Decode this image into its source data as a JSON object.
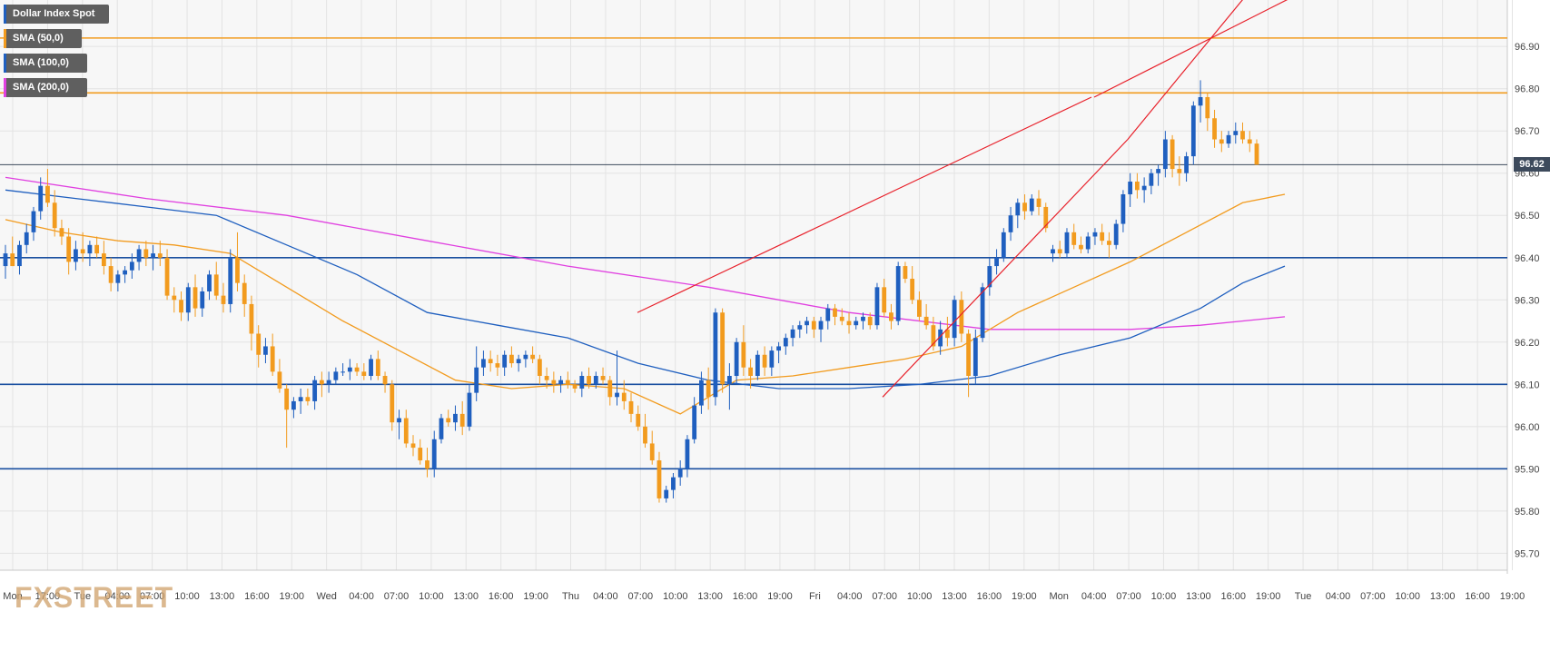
{
  "chart_data": {
    "type": "candlestick",
    "instrument": "Dollar Index Spot",
    "legend": [
      {
        "label": "Dollar Index Spot",
        "color": "#1f5fbf"
      },
      {
        "label": "SMA (50,0)",
        "color": "#f29b1e"
      },
      {
        "label": "SMA (100,0)",
        "color": "#1f5fbf"
      },
      {
        "label": "SMA (200,0)",
        "color": "#e040e0"
      }
    ],
    "y_ticks": [
      "96.90",
      "96.80",
      "96.70",
      "96.60",
      "96.50",
      "96.40",
      "96.30",
      "96.20",
      "96.10",
      "96.00",
      "95.90",
      "95.80",
      "95.70"
    ],
    "ylim": [
      95.66,
      97.01
    ],
    "x_ticks": [
      "Mon",
      "17:00",
      "Tue",
      "04:00",
      "07:00",
      "10:00",
      "13:00",
      "16:00",
      "19:00",
      "Wed",
      "04:00",
      "07:00",
      "10:00",
      "13:00",
      "16:00",
      "19:00",
      "Thu",
      "04:00",
      "07:00",
      "10:00",
      "13:00",
      "16:00",
      "19:00",
      "Fri",
      "04:00",
      "07:00",
      "10:00",
      "13:00",
      "16:00",
      "19:00",
      "Mon",
      "04:00",
      "07:00",
      "10:00",
      "13:00",
      "16:00",
      "19:00",
      "Tue",
      "04:00",
      "07:00",
      "10:00",
      "13:00",
      "16:00",
      "19:00"
    ],
    "current_price": "96.62",
    "current_price_value": 96.62,
    "horizontal_levels": [
      {
        "value": 96.92,
        "color": "#f29b1e"
      },
      {
        "value": 96.79,
        "color": "#f29b1e"
      },
      {
        "value": 96.4,
        "color": "#1a4fa0"
      },
      {
        "value": 96.1,
        "color": "#1a4fa0"
      },
      {
        "value": 95.9,
        "color": "#1a4fa0"
      }
    ],
    "trendlines": [
      {
        "from": [
          "Thu 13:00",
          96.27
        ],
        "to": [
          "Mon 16:30",
          96.78
        ]
      },
      {
        "from": [
          "Mon 16:00",
          96.78
        ],
        "to": [
          "Tue 00:00",
          97.02
        ]
      },
      {
        "from": [
          "Fri 15:00",
          96.07
        ],
        "to": [
          "Mon 18:00",
          96.68
        ]
      },
      {
        "from": [
          "Mon 18:00",
          96.68
        ],
        "to": [
          "Tue 00:00",
          97.02
        ]
      }
    ],
    "trendline_color": "#e8202a",
    "up_color": "#1f5fbf",
    "down_color": "#f29b1e",
    "candles": [
      [
        96.38,
        96.43,
        96.35,
        96.41
      ],
      [
        96.41,
        96.45,
        96.38,
        96.38
      ],
      [
        96.38,
        96.44,
        96.36,
        96.43
      ],
      [
        96.43,
        96.48,
        96.41,
        96.46
      ],
      [
        96.46,
        96.52,
        96.44,
        96.51
      ],
      [
        96.51,
        96.59,
        96.49,
        96.57
      ],
      [
        96.57,
        96.61,
        96.52,
        96.53
      ],
      [
        96.53,
        96.56,
        96.45,
        96.47
      ],
      [
        96.47,
        96.49,
        96.43,
        96.45
      ],
      [
        96.45,
        96.47,
        96.36,
        96.39
      ],
      [
        96.39,
        96.44,
        96.37,
        96.42
      ],
      [
        96.42,
        96.46,
        96.39,
        96.41
      ],
      [
        96.41,
        96.44,
        96.38,
        96.43
      ],
      [
        96.43,
        96.45,
        96.4,
        96.41
      ],
      [
        96.41,
        96.44,
        96.36,
        96.38
      ],
      [
        96.38,
        96.4,
        96.32,
        96.34
      ],
      [
        96.34,
        96.37,
        96.32,
        96.36
      ],
      [
        96.36,
        96.38,
        96.34,
        96.37
      ],
      [
        96.37,
        96.41,
        96.35,
        96.39
      ],
      [
        96.39,
        96.43,
        96.37,
        96.42
      ],
      [
        96.42,
        96.44,
        96.38,
        96.4
      ],
      [
        96.4,
        96.43,
        96.37,
        96.41
      ],
      [
        96.41,
        96.44,
        96.38,
        96.4
      ],
      [
        96.4,
        96.42,
        96.3,
        96.31
      ],
      [
        96.31,
        96.33,
        96.27,
        96.3
      ],
      [
        96.3,
        96.32,
        96.25,
        96.27
      ],
      [
        96.27,
        96.34,
        96.25,
        96.33
      ],
      [
        96.33,
        96.36,
        96.26,
        96.28
      ],
      [
        96.28,
        96.33,
        96.26,
        96.32
      ],
      [
        96.32,
        96.37,
        96.3,
        96.36
      ],
      [
        96.36,
        96.39,
        96.3,
        96.31
      ],
      [
        96.31,
        96.34,
        96.27,
        96.29
      ],
      [
        96.29,
        96.42,
        96.27,
        96.4
      ],
      [
        96.4,
        96.46,
        96.32,
        96.34
      ],
      [
        96.34,
        96.36,
        96.26,
        96.29
      ],
      [
        96.29,
        96.31,
        96.18,
        96.22
      ],
      [
        96.22,
        96.24,
        96.14,
        96.17
      ],
      [
        96.17,
        96.21,
        96.15,
        96.19
      ],
      [
        96.19,
        96.22,
        96.12,
        96.13
      ],
      [
        96.13,
        96.16,
        96.08,
        96.09
      ],
      [
        96.09,
        96.1,
        95.95,
        96.04
      ],
      [
        96.04,
        96.07,
        96.02,
        96.06
      ],
      [
        96.06,
        96.09,
        96.03,
        96.07
      ],
      [
        96.07,
        96.09,
        96.05,
        96.06
      ],
      [
        96.06,
        96.12,
        96.04,
        96.11
      ],
      [
        96.11,
        96.13,
        96.07,
        96.1
      ],
      [
        96.1,
        96.13,
        96.08,
        96.11
      ],
      [
        96.11,
        96.14,
        96.1,
        96.13
      ],
      [
        96.13,
        96.15,
        96.12,
        96.13
      ],
      [
        96.13,
        96.16,
        96.11,
        96.14
      ],
      [
        96.14,
        96.15,
        96.12,
        96.13
      ],
      [
        96.13,
        96.15,
        96.11,
        96.12
      ],
      [
        96.12,
        96.17,
        96.11,
        96.16
      ],
      [
        96.16,
        96.18,
        96.11,
        96.12
      ],
      [
        96.12,
        96.13,
        96.08,
        96.1
      ],
      [
        96.1,
        96.11,
        95.99,
        96.01
      ],
      [
        96.01,
        96.04,
        95.97,
        96.02
      ],
      [
        96.02,
        96.04,
        95.95,
        95.96
      ],
      [
        95.96,
        95.98,
        95.93,
        95.95
      ],
      [
        95.95,
        95.97,
        95.91,
        95.92
      ],
      [
        95.92,
        95.95,
        95.88,
        95.9
      ],
      [
        95.9,
        95.99,
        95.88,
        95.97
      ],
      [
        95.97,
        96.03,
        95.96,
        96.02
      ],
      [
        96.02,
        96.04,
        96,
        96.01
      ],
      [
        96.01,
        96.05,
        95.99,
        96.03
      ],
      [
        96.03,
        96.06,
        95.98,
        96
      ],
      [
        96,
        96.1,
        95.99,
        96.08
      ],
      [
        96.08,
        96.19,
        96.06,
        96.14
      ],
      [
        96.14,
        96.18,
        96.12,
        96.16
      ],
      [
        96.16,
        96.18,
        96.13,
        96.15
      ],
      [
        96.15,
        96.17,
        96.12,
        96.14
      ],
      [
        96.14,
        96.18,
        96.12,
        96.17
      ],
      [
        96.17,
        96.19,
        96.14,
        96.15
      ],
      [
        96.15,
        96.17,
        96.13,
        96.16
      ],
      [
        96.16,
        96.18,
        96.14,
        96.17
      ],
      [
        96.17,
        96.19,
        96.15,
        96.16
      ],
      [
        96.16,
        96.17,
        96.1,
        96.12
      ],
      [
        96.12,
        96.14,
        96.09,
        96.11
      ],
      [
        96.11,
        96.13,
        96.08,
        96.1
      ],
      [
        96.1,
        96.12,
        96.08,
        96.11
      ],
      [
        96.11,
        96.13,
        96.09,
        96.1
      ],
      [
        96.1,
        96.11,
        96.08,
        96.09
      ],
      [
        96.09,
        96.13,
        96.07,
        96.12
      ],
      [
        96.12,
        96.14,
        96.09,
        96.1
      ],
      [
        96.1,
        96.13,
        96.09,
        96.12
      ],
      [
        96.12,
        96.14,
        96.1,
        96.11
      ],
      [
        96.11,
        96.12,
        96.05,
        96.07
      ],
      [
        96.07,
        96.18,
        96.05,
        96.08
      ],
      [
        96.08,
        96.11,
        96.04,
        96.06
      ],
      [
        96.06,
        96.08,
        96.01,
        96.03
      ],
      [
        96.03,
        96.05,
        95.99,
        96
      ],
      [
        96,
        96.03,
        95.95,
        95.96
      ],
      [
        95.96,
        95.99,
        95.91,
        95.92
      ],
      [
        95.92,
        95.94,
        95.82,
        95.83
      ],
      [
        95.83,
        95.86,
        95.82,
        95.85
      ],
      [
        95.85,
        95.89,
        95.83,
        95.88
      ],
      [
        95.88,
        95.92,
        95.86,
        95.9
      ],
      [
        95.9,
        95.98,
        95.88,
        95.97
      ],
      [
        95.97,
        96.07,
        95.96,
        96.05
      ],
      [
        96.05,
        96.13,
        96.03,
        96.11
      ],
      [
        96.11,
        96.14,
        96.04,
        96.07
      ],
      [
        96.07,
        96.28,
        96.05,
        96.27
      ],
      [
        96.27,
        96.28,
        96.08,
        96.1
      ],
      [
        96.1,
        96.15,
        96.04,
        96.12
      ],
      [
        96.12,
        96.21,
        96.1,
        96.2
      ],
      [
        96.2,
        96.24,
        96.12,
        96.14
      ],
      [
        96.14,
        96.16,
        96.09,
        96.12
      ],
      [
        96.12,
        96.18,
        96.11,
        96.17
      ],
      [
        96.17,
        96.19,
        96.12,
        96.14
      ],
      [
        96.14,
        96.19,
        96.12,
        96.18
      ],
      [
        96.18,
        96.2,
        96.15,
        96.19
      ],
      [
        96.19,
        96.22,
        96.17,
        96.21
      ],
      [
        96.21,
        96.24,
        96.19,
        96.23
      ],
      [
        96.23,
        96.25,
        96.21,
        96.24
      ],
      [
        96.24,
        96.26,
        96.22,
        96.25
      ],
      [
        96.25,
        96.26,
        96.21,
        96.23
      ],
      [
        96.23,
        96.26,
        96.2,
        96.25
      ],
      [
        96.25,
        96.29,
        96.23,
        96.28
      ],
      [
        96.28,
        96.29,
        96.24,
        96.26
      ],
      [
        96.26,
        96.28,
        96.24,
        96.25
      ],
      [
        96.25,
        96.27,
        96.22,
        96.24
      ],
      [
        96.24,
        96.26,
        96.23,
        96.25
      ],
      [
        96.25,
        96.27,
        96.23,
        96.26
      ],
      [
        96.26,
        96.27,
        96.23,
        96.24
      ],
      [
        96.24,
        96.34,
        96.23,
        96.33
      ],
      [
        96.33,
        96.35,
        96.26,
        96.27
      ],
      [
        96.27,
        96.29,
        96.23,
        96.25
      ],
      [
        96.25,
        96.39,
        96.24,
        96.38
      ],
      [
        96.38,
        96.39,
        96.34,
        96.35
      ],
      [
        96.35,
        96.38,
        96.29,
        96.3
      ],
      [
        96.3,
        96.32,
        96.25,
        96.26
      ],
      [
        96.26,
        96.29,
        96.23,
        96.24
      ],
      [
        96.24,
        96.26,
        96.18,
        96.19
      ],
      [
        96.19,
        96.25,
        96.17,
        96.23
      ],
      [
        96.23,
        96.26,
        96.19,
        96.21
      ],
      [
        96.21,
        96.31,
        96.19,
        96.3
      ],
      [
        96.3,
        96.32,
        96.2,
        96.22
      ],
      [
        96.22,
        96.23,
        96.07,
        96.12
      ],
      [
        96.12,
        96.23,
        96.1,
        96.21
      ],
      [
        96.21,
        96.34,
        96.2,
        96.33
      ],
      [
        96.33,
        96.4,
        96.31,
        96.38
      ],
      [
        96.38,
        96.42,
        96.36,
        96.4
      ],
      [
        96.4,
        96.47,
        96.39,
        96.46
      ],
      [
        96.46,
        96.52,
        96.44,
        96.5
      ],
      [
        96.5,
        96.54,
        96.47,
        96.53
      ],
      [
        96.53,
        96.55,
        96.49,
        96.51
      ],
      [
        96.51,
        96.55,
        96.5,
        96.54
      ],
      [
        96.54,
        96.56,
        96.5,
        96.52
      ],
      [
        96.52,
        96.53,
        96.46,
        96.47
      ],
      [
        96.41,
        96.43,
        96.39,
        96.42
      ],
      [
        96.42,
        96.44,
        96.4,
        96.41
      ],
      [
        96.41,
        96.47,
        96.4,
        96.46
      ],
      [
        96.46,
        96.48,
        96.42,
        96.43
      ],
      [
        96.43,
        96.45,
        96.41,
        96.42
      ],
      [
        96.42,
        96.46,
        96.41,
        96.45
      ],
      [
        96.45,
        96.47,
        96.43,
        96.46
      ],
      [
        96.46,
        96.48,
        96.43,
        96.44
      ],
      [
        96.44,
        96.46,
        96.4,
        96.43
      ],
      [
        96.43,
        96.49,
        96.42,
        96.48
      ],
      [
        96.48,
        96.56,
        96.46,
        96.55
      ],
      [
        96.55,
        96.6,
        96.52,
        96.58
      ],
      [
        96.58,
        96.6,
        96.54,
        96.56
      ],
      [
        96.56,
        96.59,
        96.53,
        96.57
      ],
      [
        96.57,
        96.61,
        96.55,
        96.6
      ],
      [
        96.6,
        96.62,
        96.57,
        96.61
      ],
      [
        96.61,
        96.7,
        96.59,
        96.68
      ],
      [
        96.68,
        96.69,
        96.59,
        96.61
      ],
      [
        96.61,
        96.64,
        96.57,
        96.6
      ],
      [
        96.6,
        96.65,
        96.58,
        96.64
      ],
      [
        96.64,
        96.77,
        96.62,
        96.76
      ],
      [
        96.76,
        96.82,
        96.72,
        96.78
      ],
      [
        96.78,
        96.79,
        96.7,
        96.73
      ],
      [
        96.73,
        96.75,
        96.66,
        96.68
      ],
      [
        96.68,
        96.7,
        96.65,
        96.67
      ],
      [
        96.67,
        96.7,
        96.66,
        96.69
      ],
      [
        96.69,
        96.72,
        96.67,
        96.7
      ],
      [
        96.7,
        96.72,
        96.67,
        96.68
      ],
      [
        96.68,
        96.7,
        96.65,
        96.67
      ],
      [
        96.67,
        96.68,
        96.62,
        96.62
      ]
    ],
    "sma50": [
      [
        0,
        96.49
      ],
      [
        8,
        96.46
      ],
      [
        16,
        96.44
      ],
      [
        24,
        96.43
      ],
      [
        32,
        96.41
      ],
      [
        40,
        96.33
      ],
      [
        48,
        96.25
      ],
      [
        56,
        96.18
      ],
      [
        64,
        96.11
      ],
      [
        72,
        96.09
      ],
      [
        80,
        96.1
      ],
      [
        88,
        96.09
      ],
      [
        96,
        96.03
      ],
      [
        104,
        96.11
      ],
      [
        112,
        96.12
      ],
      [
        120,
        96.14
      ],
      [
        128,
        96.16
      ],
      [
        136,
        96.19
      ],
      [
        144,
        96.27
      ],
      [
        152,
        96.33
      ],
      [
        160,
        96.39
      ],
      [
        168,
        96.46
      ],
      [
        176,
        96.53
      ],
      [
        182,
        96.55
      ]
    ],
    "sma100": [
      [
        0,
        96.56
      ],
      [
        10,
        96.54
      ],
      [
        20,
        96.52
      ],
      [
        30,
        96.5
      ],
      [
        40,
        96.43
      ],
      [
        50,
        96.36
      ],
      [
        60,
        96.27
      ],
      [
        70,
        96.24
      ],
      [
        80,
        96.21
      ],
      [
        90,
        96.15
      ],
      [
        100,
        96.11
      ],
      [
        110,
        96.09
      ],
      [
        120,
        96.09
      ],
      [
        130,
        96.1
      ],
      [
        140,
        96.12
      ],
      [
        150,
        96.17
      ],
      [
        160,
        96.21
      ],
      [
        170,
        96.28
      ],
      [
        176,
        96.34
      ],
      [
        182,
        96.38
      ]
    ],
    "sma200": [
      [
        0,
        96.59
      ],
      [
        20,
        96.54
      ],
      [
        40,
        96.5
      ],
      [
        60,
        96.44
      ],
      [
        80,
        96.38
      ],
      [
        100,
        96.33
      ],
      [
        120,
        96.27
      ],
      [
        140,
        96.23
      ],
      [
        160,
        96.23
      ],
      [
        170,
        96.24
      ],
      [
        182,
        96.26
      ]
    ]
  },
  "branding": {
    "watermark": "FXSTREET"
  }
}
